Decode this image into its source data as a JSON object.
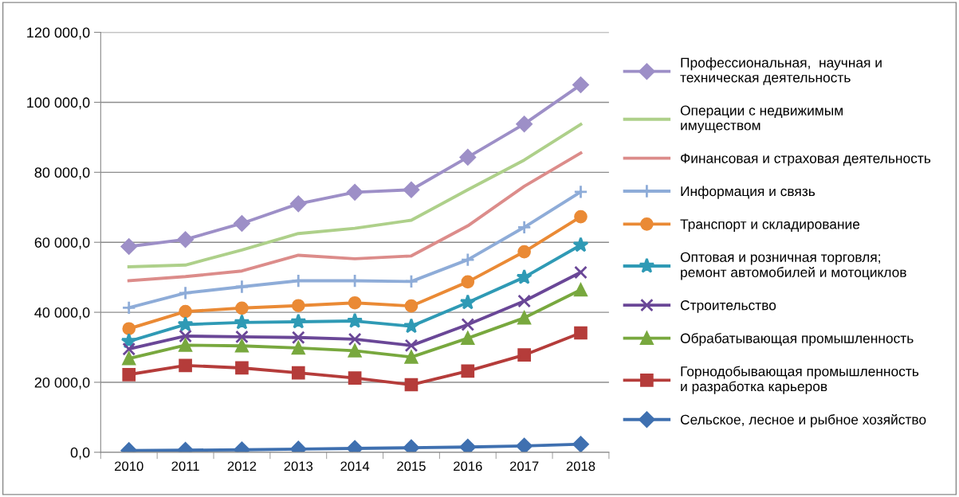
{
  "chart_data": {
    "type": "line",
    "categories": [
      "2010",
      "2011",
      "2012",
      "2013",
      "2014",
      "2015",
      "2016",
      "2017",
      "2018"
    ],
    "ylim": [
      0,
      120000
    ],
    "yticks": [
      {
        "value": 0,
        "label": "0,0"
      },
      {
        "value": 20000,
        "label": "20 000,0"
      },
      {
        "value": 40000,
        "label": "40 000,0"
      },
      {
        "value": 60000,
        "label": "60 000,0"
      },
      {
        "value": 80000,
        "label": "80 000,0"
      },
      {
        "value": 100000,
        "label": "100 000,0"
      },
      {
        "value": 120000,
        "label": "120 000,0"
      }
    ],
    "grid": "y",
    "legend": "right",
    "series": [
      {
        "name": "Профессиональная,  научная и\nтехническая деятельность",
        "color": "#9d8fc7",
        "marker": "diamond",
        "values": [
          58800,
          60800,
          65400,
          71000,
          74300,
          75000,
          84300,
          93800,
          105000
        ]
      },
      {
        "name": "Операции с недвижимым\nимуществом",
        "color": "#aed08a",
        "marker": "none",
        "values": [
          53000,
          53500,
          57800,
          62500,
          64000,
          66300,
          75000,
          83500,
          93700
        ]
      },
      {
        "name": "Финансовая и страховая деятельность",
        "color": "#dc8c8a",
        "marker": "none",
        "values": [
          49000,
          50200,
          51800,
          56300,
          55300,
          56100,
          64700,
          76000,
          85500
        ]
      },
      {
        "name": "Информация и связь",
        "color": "#8eacd8",
        "marker": "plus",
        "values": [
          41300,
          45500,
          47300,
          49000,
          49000,
          48800,
          55000,
          64300,
          74400
        ]
      },
      {
        "name": "Транспорт и складирование",
        "color": "#ea8a35",
        "marker": "circle",
        "values": [
          35300,
          40200,
          41200,
          41900,
          42700,
          41800,
          48700,
          57300,
          67300
        ]
      },
      {
        "name": "Оптовая и розничная торговля;\nремонт автомобилей и мотоциклов",
        "color": "#2f9ab5",
        "marker": "star",
        "values": [
          31700,
          36500,
          37100,
          37300,
          37500,
          36000,
          42800,
          50000,
          59200
        ]
      },
      {
        "name": "Строительство",
        "color": "#6a4797",
        "marker": "cross",
        "values": [
          29500,
          33200,
          33000,
          32800,
          32300,
          30500,
          36500,
          43200,
          51400
        ]
      },
      {
        "name": "Обрабатывающая промышленность",
        "color": "#78a83e",
        "marker": "triangle",
        "values": [
          26800,
          30600,
          30400,
          29800,
          29000,
          27200,
          32600,
          38400,
          46400
        ]
      },
      {
        "name": "Горнодобывающая промышленность\nи разработка карьеров",
        "color": "#b53c3a",
        "marker": "square",
        "values": [
          22200,
          24800,
          24100,
          22700,
          21200,
          19300,
          23200,
          27800,
          34100
        ]
      },
      {
        "name": "Сельское, лесное и рыбное хозяйство",
        "color": "#3f70b0",
        "marker": "diamond",
        "values": [
          500,
          600,
          700,
          900,
          1100,
          1300,
          1500,
          1800,
          2300
        ]
      }
    ]
  }
}
